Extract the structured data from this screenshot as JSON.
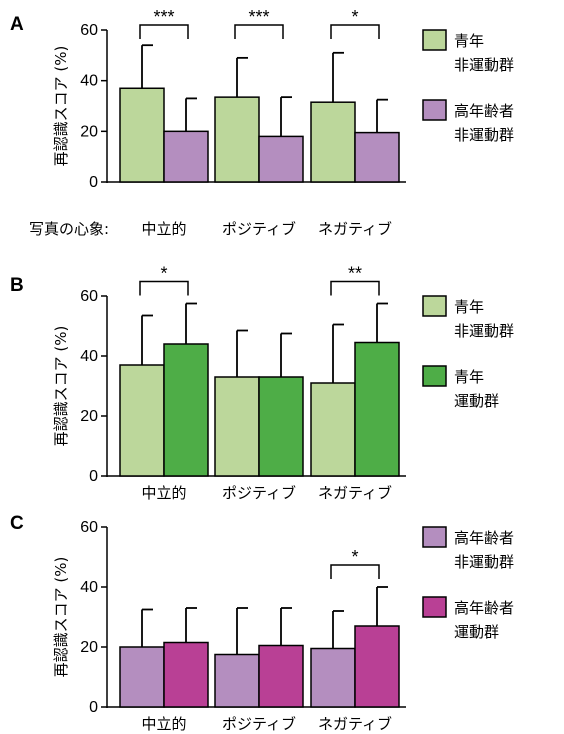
{
  "chart_data": [
    {
      "panel": "A",
      "type": "bar",
      "ylabel": "再認識スコア (%)",
      "ylim": [
        0,
        60
      ],
      "yticks": [
        0,
        20,
        40,
        60
      ],
      "category_prefix": "写真の心象:",
      "categories": [
        "中立的",
        "ポジティブ",
        "ネガティブ"
      ],
      "series": [
        {
          "legend_lines": [
            "青年",
            "非運動群"
          ],
          "color": "#bcd79b",
          "values": [
            37,
            33.5,
            31.5
          ],
          "errors": [
            17,
            15.5,
            19.5
          ]
        },
        {
          "legend_lines": [
            "高年齢者",
            "非運動群"
          ],
          "color": "#b48ebf",
          "values": [
            20,
            18,
            19.5
          ],
          "errors": [
            13,
            15.5,
            13
          ]
        }
      ],
      "significance": [
        "***",
        "***",
        "*"
      ]
    },
    {
      "panel": "B",
      "type": "bar",
      "ylabel": "再認識スコア (%)",
      "ylim": [
        0,
        60
      ],
      "yticks": [
        0,
        20,
        40,
        60
      ],
      "category_prefix": "",
      "categories": [
        "中立的",
        "ポジティブ",
        "ネガティブ"
      ],
      "series": [
        {
          "legend_lines": [
            "青年",
            "非運動群"
          ],
          "color": "#bcd79b",
          "values": [
            37,
            33,
            31
          ],
          "errors": [
            16.5,
            15.5,
            19.5
          ]
        },
        {
          "legend_lines": [
            "青年",
            "運動群"
          ],
          "color": "#4ead47",
          "values": [
            44,
            33,
            44.5
          ],
          "errors": [
            13.5,
            14.5,
            13
          ]
        }
      ],
      "significance": [
        "*",
        "",
        "**"
      ]
    },
    {
      "panel": "C",
      "type": "bar",
      "ylabel": "再認識スコア (%)",
      "ylim": [
        0,
        60
      ],
      "yticks": [
        0,
        20,
        40,
        60
      ],
      "category_prefix": "",
      "categories": [
        "中立的",
        "ポジティブ",
        "ネガティブ"
      ],
      "series": [
        {
          "legend_lines": [
            "高年齢者",
            "非運動群"
          ],
          "color": "#b48ebf",
          "values": [
            20,
            17.5,
            19.5
          ],
          "errors": [
            12.5,
            15.5,
            12.5
          ]
        },
        {
          "legend_lines": [
            "高年齢者",
            "運動群"
          ],
          "color": "#b94095",
          "values": [
            21.5,
            20.5,
            27
          ],
          "errors": [
            11.5,
            12.5,
            13
          ]
        }
      ],
      "significance": [
        "",
        "",
        "*"
      ]
    }
  ]
}
